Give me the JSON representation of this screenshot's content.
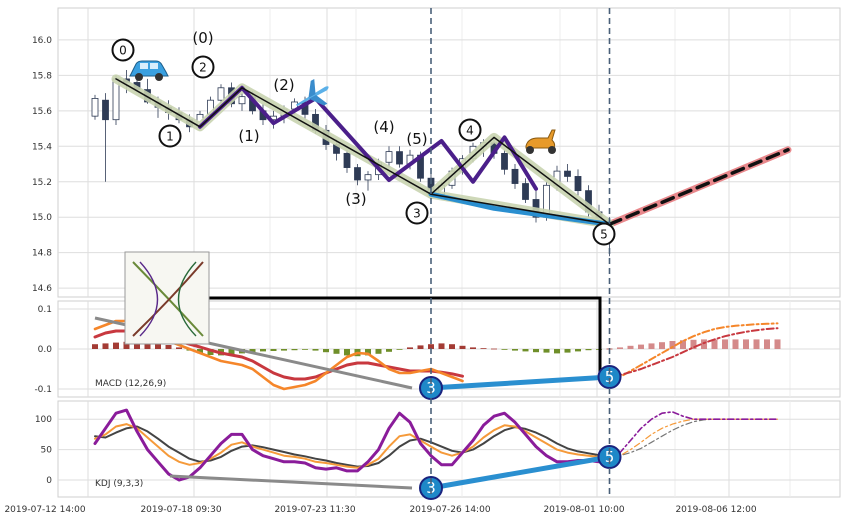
{
  "chart_data": [
    {
      "type": "candlestick",
      "panel": "price",
      "ylim": [
        14.55,
        16.18
      ],
      "y_ticks": [
        "14.6",
        "14.8",
        "15.0",
        "15.2",
        "15.4",
        "15.6",
        "15.8",
        "16.0"
      ],
      "x_ticks": [
        "2019-07-12 14:00",
        "2019-07-18 09:30",
        "2019-07-23 11:30",
        "2019-07-26 14:00",
        "2019-08-01 10:00",
        "2019-08-06 12:00"
      ],
      "candles": [
        [
          0,
          15.57,
          15.69,
          15.55,
          15.67
        ],
        [
          1,
          15.66,
          15.7,
          15.2,
          15.55
        ],
        [
          2,
          15.55,
          15.8,
          15.52,
          15.78
        ],
        [
          3,
          15.78,
          15.83,
          15.7,
          15.76
        ],
        [
          4,
          15.76,
          15.82,
          15.72,
          15.72
        ],
        [
          5,
          15.72,
          15.78,
          15.64,
          15.65
        ],
        [
          6,
          15.65,
          15.68,
          15.56,
          15.62
        ],
        [
          7,
          15.62,
          15.66,
          15.55,
          15.59
        ],
        [
          8,
          15.59,
          15.62,
          15.53,
          15.55
        ],
        [
          9,
          15.55,
          15.58,
          15.48,
          15.51
        ],
        [
          10,
          15.51,
          15.6,
          15.49,
          15.58
        ],
        [
          11,
          15.58,
          15.68,
          15.56,
          15.66
        ],
        [
          12,
          15.66,
          15.75,
          15.64,
          15.73
        ],
        [
          13,
          15.73,
          15.76,
          15.62,
          15.64
        ],
        [
          14,
          15.64,
          15.7,
          15.6,
          15.68
        ],
        [
          15,
          15.68,
          15.71,
          15.58,
          15.6
        ],
        [
          16,
          15.6,
          15.64,
          15.52,
          15.55
        ],
        [
          17,
          15.55,
          15.6,
          15.5,
          15.57
        ],
        [
          18,
          15.57,
          15.63,
          15.53,
          15.61
        ],
        [
          19,
          15.61,
          15.67,
          15.58,
          15.65
        ],
        [
          20,
          15.65,
          15.68,
          15.55,
          15.58
        ],
        [
          21,
          15.58,
          15.61,
          15.47,
          15.49
        ],
        [
          22,
          15.49,
          15.52,
          15.38,
          15.41
        ],
        [
          23,
          15.41,
          15.44,
          15.32,
          15.36
        ],
        [
          24,
          15.36,
          15.38,
          15.25,
          15.28
        ],
        [
          25,
          15.28,
          15.3,
          15.18,
          15.21
        ],
        [
          26,
          15.21,
          15.26,
          15.15,
          15.24
        ],
        [
          27,
          15.24,
          15.33,
          15.21,
          15.31
        ],
        [
          28,
          15.31,
          15.4,
          15.28,
          15.37
        ],
        [
          29,
          15.37,
          15.4,
          15.28,
          15.3
        ],
        [
          30,
          15.3,
          15.38,
          15.27,
          15.35
        ],
        [
          31,
          15.35,
          15.37,
          15.2,
          15.22
        ],
        [
          32,
          15.22,
          15.25,
          15.11,
          15.13
        ],
        [
          33,
          15.13,
          15.2,
          15.1,
          15.18
        ],
        [
          34,
          15.18,
          15.28,
          15.16,
          15.26
        ],
        [
          35,
          15.26,
          15.35,
          15.24,
          15.33
        ],
        [
          36,
          15.33,
          15.42,
          15.31,
          15.4
        ],
        [
          37,
          15.4,
          15.44,
          15.34,
          15.42
        ],
        [
          38,
          15.42,
          15.45,
          15.33,
          15.36
        ],
        [
          39,
          15.36,
          15.38,
          15.24,
          15.27
        ],
        [
          40,
          15.27,
          15.3,
          15.16,
          15.19
        ],
        [
          41,
          15.19,
          15.22,
          15.08,
          15.1
        ],
        [
          42,
          15.1,
          15.15,
          14.97,
          15.0
        ],
        [
          43,
          15.0,
          15.2,
          14.98,
          15.18
        ],
        [
          44,
          15.18,
          15.29,
          15.15,
          15.26
        ],
        [
          45,
          15.26,
          15.3,
          15.2,
          15.23
        ],
        [
          46,
          15.23,
          15.27,
          15.12,
          15.15
        ],
        [
          47,
          15.15,
          15.18,
          15.0,
          15.03
        ],
        [
          48,
          15.03,
          15.07,
          14.95,
          14.98
        ],
        [
          49,
          14.98,
          15.0,
          14.78,
          14.96
        ]
      ],
      "zigzag_black": [
        [
          2,
          15.78
        ],
        [
          10,
          15.51
        ],
        [
          14,
          15.73
        ],
        [
          32,
          15.13
        ],
        [
          49,
          14.96
        ]
      ],
      "zigzag_black_mid": [
        [
          32,
          15.13
        ],
        [
          38,
          15.45
        ],
        [
          49,
          14.96
        ]
      ],
      "zigzag_purple": [
        [
          10,
          15.51
        ],
        [
          14,
          15.73
        ],
        [
          17,
          15.53
        ],
        [
          21,
          15.67
        ],
        [
          28,
          15.21
        ],
        [
          33,
          15.43
        ],
        [
          36,
          15.2
        ],
        [
          39,
          15.45
        ],
        [
          42,
          15.16
        ]
      ],
      "trend_blue": [
        [
          32,
          15.13
        ],
        [
          38,
          15.05
        ],
        [
          49,
          14.96
        ]
      ],
      "projection_red": [
        [
          49,
          14.96
        ],
        [
          66,
          15.38
        ]
      ],
      "projection_black_dash": [
        [
          49,
          14.96
        ],
        [
          66,
          15.38
        ]
      ],
      "wave_labels": [
        {
          "text": "0",
          "x": 1.5,
          "y": 15.93,
          "circled": true
        },
        {
          "text": "(0)",
          "x": 6.5,
          "y": 16.0,
          "circled": false
        },
        {
          "text": "2",
          "x": 6.5,
          "y": 15.82,
          "circled": true
        },
        {
          "text": "1",
          "x": 4,
          "y": 15.44,
          "circled": true
        },
        {
          "text": "(1)",
          "x": 9,
          "y": 15.45,
          "circled": false
        },
        {
          "text": "(2)",
          "x": 11.5,
          "y": 15.72,
          "circled": false
        },
        {
          "text": "(3)",
          "x": 15.5,
          "y": 15.17,
          "circled": false
        },
        {
          "text": "(4)",
          "x": 17.5,
          "y": 15.5,
          "circled": false
        },
        {
          "text": "(5)",
          "x": 19.5,
          "y": 15.43,
          "circled": false
        },
        {
          "text": "3",
          "x": 19.5,
          "y": 15.0,
          "circled": true
        },
        {
          "text": "4",
          "x": 23,
          "y": 15.48,
          "circled": true
        },
        {
          "text": "5",
          "x": 33,
          "y": 14.92,
          "circled": true
        }
      ]
    },
    {
      "type": "bar+line",
      "panel": "macd",
      "label": "MACD (12,26,9)",
      "ylim": [
        -0.12,
        0.12
      ],
      "y_ticks": [
        "-0.1",
        "0.0",
        "0.1"
      ],
      "histogram": [
        0.012,
        0.014,
        0.016,
        0.018,
        0.019,
        0.018,
        0.015,
        0.01,
        0.004,
        -0.004,
        -0.011,
        -0.015,
        -0.016,
        -0.014,
        -0.011,
        -0.008,
        -0.006,
        -0.005,
        -0.004,
        -0.003,
        -0.002,
        -0.004,
        -0.008,
        -0.012,
        -0.016,
        -0.018,
        -0.016,
        -0.012,
        -0.007,
        -0.002,
        0.004,
        0.009,
        0.012,
        0.014,
        0.012,
        0.008,
        0.004,
        0.002,
        0.001,
        -0.002,
        -0.004,
        -0.006,
        -0.008,
        -0.009,
        -0.011,
        -0.009,
        -0.006,
        -0.003,
        -0.001,
        0.001,
        0.004,
        0.008,
        0.011,
        0.014,
        0.017,
        0.02,
        0.022,
        0.023,
        0.024,
        0.024,
        0.024,
        0.024,
        0.024,
        0.024,
        0.024,
        0.024
      ],
      "macd_line": [
        0.05,
        0.06,
        0.07,
        0.07,
        0.06,
        0.05,
        0.03,
        0.02,
        0.01,
        0.0,
        -0.01,
        -0.02,
        -0.03,
        -0.035,
        -0.04,
        -0.05,
        -0.07,
        -0.09,
        -0.1,
        -0.095,
        -0.09,
        -0.08,
        -0.06,
        -0.04,
        -0.02,
        -0.01,
        -0.012,
        -0.03,
        -0.05,
        -0.06,
        -0.06,
        -0.055,
        -0.05,
        -0.06,
        -0.07,
        -0.08
      ],
      "signal_line": [
        0.03,
        0.04,
        0.045,
        0.045,
        0.04,
        0.035,
        0.03,
        0.025,
        0.02,
        0.012,
        0.005,
        -0.003,
        -0.01,
        -0.015,
        -0.02,
        -0.03,
        -0.045,
        -0.06,
        -0.07,
        -0.075,
        -0.075,
        -0.07,
        -0.06,
        -0.05,
        -0.04,
        -0.035,
        -0.035,
        -0.04,
        -0.045,
        -0.05,
        -0.055,
        -0.055,
        -0.055,
        -0.058,
        -0.062,
        -0.068
      ],
      "macd_proj": [
        -0.08,
        -0.07,
        -0.055,
        -0.04,
        -0.025,
        -0.01,
        0.005,
        0.02,
        0.032,
        0.042,
        0.05,
        0.055,
        0.058,
        0.06,
        0.062,
        0.063,
        0.064
      ],
      "signal_proj": [
        -0.068,
        -0.065,
        -0.058,
        -0.05,
        -0.04,
        -0.03,
        -0.02,
        -0.008,
        0.004,
        0.015,
        0.024,
        0.032,
        0.038,
        0.043,
        0.047,
        0.05,
        0.052
      ],
      "divergence": {
        "a": {
          "text": "3",
          "x": 32
        },
        "b": {
          "text": "5",
          "x": 49
        }
      }
    },
    {
      "type": "line",
      "panel": "kdj",
      "label": "KDJ (9,3,3)",
      "ylim": [
        -28,
        130
      ],
      "y_ticks": [
        "0",
        "50",
        "100"
      ],
      "k_line": [
        68,
        75,
        88,
        92,
        85,
        70,
        55,
        40,
        30,
        25,
        28,
        35,
        45,
        58,
        62,
        55,
        50,
        45,
        40,
        38,
        35,
        30,
        28,
        25,
        22,
        20,
        25,
        35,
        55,
        72,
        75,
        65,
        55,
        45,
        40,
        45,
        55,
        70,
        82,
        90,
        88,
        80,
        70,
        60,
        50,
        45,
        42,
        40,
        38,
        35
      ],
      "d_line": [
        72,
        70,
        78,
        85,
        88,
        80,
        68,
        55,
        45,
        35,
        30,
        32,
        38,
        48,
        55,
        57,
        54,
        50,
        46,
        42,
        39,
        35,
        32,
        28,
        25,
        22,
        23,
        28,
        40,
        55,
        65,
        68,
        62,
        55,
        48,
        45,
        50,
        60,
        72,
        82,
        87,
        84,
        78,
        70,
        60,
        52,
        47,
        44,
        41,
        38
      ],
      "j_line": [
        60,
        85,
        110,
        115,
        80,
        50,
        30,
        10,
        0,
        5,
        20,
        40,
        60,
        75,
        75,
        50,
        40,
        35,
        30,
        30,
        28,
        20,
        18,
        20,
        15,
        15,
        30,
        50,
        85,
        110,
        95,
        60,
        40,
        25,
        25,
        45,
        65,
        90,
        105,
        110,
        95,
        75,
        55,
        40,
        30,
        30,
        32,
        32,
        30,
        28
      ],
      "k_proj": [
        35,
        40,
        50,
        62,
        75,
        85,
        92,
        97,
        100,
        100,
        100,
        100,
        100,
        100,
        100,
        100,
        100
      ],
      "d_proj": [
        38,
        40,
        45,
        52,
        62,
        72,
        82,
        90,
        96,
        99,
        100,
        100,
        100,
        100,
        100,
        100,
        100
      ],
      "j_proj": [
        28,
        45,
        65,
        85,
        100,
        110,
        112,
        105,
        100,
        100,
        100,
        100,
        100,
        100,
        100,
        100,
        100
      ],
      "divergence": {
        "a": {
          "text": "3",
          "x": 32
        },
        "b": {
          "text": "5",
          "x": 49
        }
      }
    }
  ]
}
